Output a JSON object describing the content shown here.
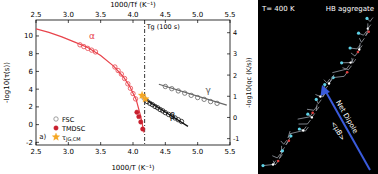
{
  "chart_data": {
    "type": "scatter",
    "x_label": "1000/T (K⁻¹)",
    "x2_label": "1000/Tf (K⁻¹)",
    "y_label": "-log10(τ(s))",
    "y2_label": "-log10(qc (K/s))",
    "xlim": [
      2.5,
      5.5
    ],
    "xticks": [
      2.5,
      {
        "value": 3,
        "label": "3.0"
      },
      3.5,
      {
        "value": 4,
        "label": "4.0"
      },
      4.5,
      {
        "value": 5,
        "label": "5.0"
      },
      5.5
    ],
    "x2lim": [
      2.5,
      5.5
    ],
    "x2ticks": [
      2.5,
      {
        "value": 3,
        "label": "3.0"
      },
      3.5,
      {
        "value": 4,
        "label": "4.0"
      },
      4.5,
      {
        "value": 5,
        "label": "5.0"
      },
      5.5
    ],
    "ylim": [
      -2.3,
      11.8
    ],
    "yticks": [
      -2,
      0,
      2,
      4,
      6,
      8,
      10
    ],
    "y2lim": [
      -1.3,
      4.6
    ],
    "y2ticks": [
      -1,
      0,
      1,
      2,
      3,
      4
    ],
    "legend": "lower left",
    "series": [
      {
        "type": "line",
        "color": "#e8434b",
        "line_style": "solid",
        "x": [
          2.5,
          2.7,
          2.9,
          3.1,
          3.3,
          3.5,
          3.7,
          3.85,
          3.95,
          4.05,
          4.12,
          4.17
        ],
        "values": [
          10.8,
          10.4,
          9.9,
          9.3,
          8.7,
          7.8,
          6.6,
          5.4,
          4.3,
          2.8,
          0.9,
          -0.9
        ]
      },
      {
        "type": "line",
        "color": "#111111",
        "line_style": "solid",
        "x": [
          4.2,
          4.85
        ],
        "values": [
          2.8,
          -0.2
        ]
      },
      {
        "type": "line",
        "color": "#666666",
        "line_style": "solid",
        "x": [
          4.4,
          5.45
        ],
        "values": [
          4.55,
          2.2
        ]
      },
      {
        "name": "FSC",
        "type": "scatter",
        "marker": "open_circle",
        "color": "#888888",
        "x": [
          3.18,
          3.24,
          3.3,
          3.36,
          3.42,
          3.72,
          3.77,
          3.82,
          3.87,
          3.92,
          3.96,
          4.0,
          4.04,
          4.17,
          4.22,
          4.26,
          4.3,
          4.34,
          4.38,
          4.42,
          4.46,
          4.5,
          4.55,
          4.6,
          4.65,
          4.7,
          4.75,
          4.5,
          4.6,
          4.7,
          4.8,
          4.9,
          5.0,
          5.1,
          5.2,
          5.3
        ],
        "values": [
          9.0,
          8.8,
          8.6,
          8.4,
          8.2,
          6.5,
          6.1,
          5.7,
          5.2,
          4.6,
          4.1,
          3.5,
          2.9,
          3.0,
          2.6,
          2.4,
          2.25,
          2.05,
          1.9,
          1.7,
          1.55,
          1.35,
          1.15,
          0.95,
          0.75,
          0.55,
          0.35,
          4.3,
          4.05,
          3.8,
          3.55,
          3.3,
          3.05,
          2.85,
          2.6,
          2.4
        ],
        "colors": [
          "#e8434b",
          "#e8434b",
          "#e8434b",
          "#e8434b",
          "#e8434b",
          "#e8434b",
          "#e8434b",
          "#e8434b",
          "#e8434b",
          "#e8434b",
          "#e8434b",
          "#e8434b",
          "#e8434b",
          "#888888",
          "#111111",
          "#111111",
          "#111111",
          "#111111",
          "#111111",
          "#111111",
          "#111111",
          "#111111",
          "#111111",
          "#111111",
          "#111111",
          "#111111",
          "#111111",
          "#666666",
          "#666666",
          "#666666",
          "#666666",
          "#666666",
          "#666666",
          "#666666",
          "#666666",
          "#666666"
        ]
      },
      {
        "name": "TMDSC",
        "type": "scatter",
        "marker": "circle",
        "color": "#c8202e",
        "x": [
          4.06,
          4.09,
          4.12,
          4.15
        ],
        "values": [
          1.4,
          0.9,
          0.3,
          -0.5
        ]
      },
      {
        "name": "τJG,CM",
        "type": "scatter",
        "marker": "star",
        "color": "#f5a623",
        "x": [
          4.14,
          4.19
        ],
        "values": [
          3.3,
          2.9
        ]
      }
    ],
    "annotations": [
      {
        "text": "α",
        "x": 3.32,
        "y": 9.7,
        "color": "#e8434b"
      },
      {
        "text": "β",
        "x": 4.57,
        "y": 0.6,
        "color": "#111111"
      },
      {
        "text": "γ",
        "x": 5.12,
        "y": 3.6,
        "color": "#555555"
      },
      {
        "text": "a)",
        "x": 2.55,
        "y": -1.6,
        "color": "#111111"
      }
    ],
    "vlines": [
      {
        "x": 4.18,
        "label": "Tg (100 s)"
      }
    ]
  },
  "panel": {
    "temperature": "T= 400 K",
    "title": "HB aggregate",
    "arrow_label": "Net Dipole",
    "dipole": "<μB>"
  }
}
